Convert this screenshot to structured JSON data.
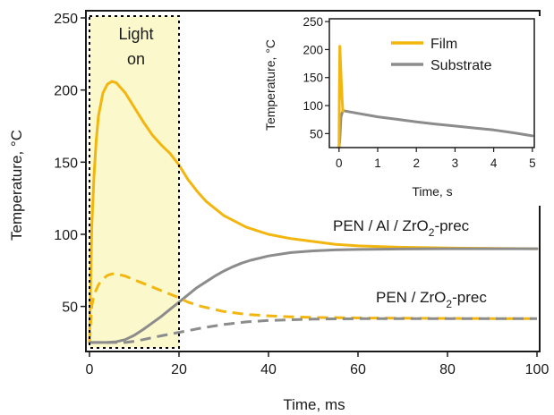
{
  "chart_data": [
    {
      "id": "main",
      "type": "line",
      "title": "",
      "xlabel": "Time, ms",
      "ylabel": "Temperature, °C",
      "xlim": [
        0,
        100
      ],
      "ylim": [
        20,
        250
      ],
      "xticks": [
        "0",
        "20",
        "40",
        "60",
        "80",
        "100"
      ],
      "yticks": [
        "50",
        "100",
        "150",
        "200",
        "250"
      ],
      "grid": false,
      "highlight": {
        "x_range": [
          0,
          20
        ],
        "color": "#fbf8cc",
        "label_line1": "Light",
        "label_line2": "on"
      },
      "annotations": [
        {
          "text": "PEN / Al / ZrO",
          "sub": "2",
          "suffix": "-prec"
        },
        {
          "text": "PEN / ZrO",
          "sub": "2",
          "suffix": "-prec"
        }
      ],
      "series": [
        {
          "color": "#f2b60f",
          "dash": false,
          "x": [
            0,
            0.5,
            1,
            1.5,
            2,
            3,
            4,
            5,
            6,
            8,
            10,
            12,
            14,
            16,
            18,
            20,
            21,
            22,
            24,
            26,
            28,
            30,
            35,
            40,
            45,
            50,
            55,
            60,
            65,
            70,
            80,
            90,
            100
          ],
          "y": [
            25,
            105,
            140,
            165,
            182,
            198,
            204,
            206,
            205,
            198,
            188,
            178,
            169,
            162,
            156,
            148,
            143,
            138,
            130,
            123,
            118,
            113,
            105,
            100,
            97,
            95,
            93,
            92,
            91.5,
            91,
            90.5,
            90.2,
            90
          ]
        },
        {
          "color": "#8c8c8c",
          "dash": false,
          "x": [
            0,
            4,
            6,
            8,
            10,
            12,
            14,
            16,
            18,
            20,
            22,
            24,
            26,
            28,
            30,
            32,
            34,
            36,
            40,
            45,
            50,
            55,
            60,
            70,
            80,
            90,
            100
          ],
          "y": [
            25,
            25,
            25.5,
            27,
            30,
            34,
            38.5,
            43,
            48,
            53,
            58,
            63,
            67,
            71,
            74.5,
            77.5,
            80,
            82,
            85,
            87.3,
            88.5,
            89.2,
            89.5,
            89.8,
            90,
            90,
            90
          ]
        },
        {
          "color": "#f2b60f",
          "dash": true,
          "x": [
            0,
            0.5,
            1,
            2,
            3,
            4,
            5,
            6,
            8,
            10,
            12,
            14,
            16,
            18,
            20,
            22,
            25,
            30,
            35,
            40,
            45,
            50,
            60,
            70,
            80,
            90,
            100
          ],
          "y": [
            25,
            50,
            58,
            65,
            69,
            71.5,
            72.5,
            72.5,
            71,
            68.5,
            66,
            63.5,
            61,
            58.5,
            56,
            53,
            50,
            46.5,
            44.5,
            43.5,
            42.8,
            42.4,
            42,
            41.8,
            41.7,
            41.6,
            41.5
          ]
        },
        {
          "color": "#8c8c8c",
          "dash": true,
          "x": [
            0,
            8,
            10,
            12,
            14,
            16,
            18,
            20,
            22,
            25,
            30,
            35,
            40,
            50,
            60,
            70,
            80,
            90,
            100
          ],
          "y": [
            25,
            25,
            25.8,
            27,
            28.3,
            29.6,
            30.8,
            32,
            33.2,
            35,
            37.5,
            39.3,
            40.3,
            41.2,
            41.5,
            41.6,
            41.6,
            41.6,
            41.6
          ]
        }
      ]
    },
    {
      "id": "inset",
      "type": "line",
      "title": "",
      "xlabel": "Time, s",
      "ylabel": "Temperature, °C",
      "xlim": [
        -0.25,
        5.05
      ],
      "ylim": [
        25,
        255
      ],
      "xticks": [
        "0",
        "1",
        "2",
        "3",
        "4",
        "5"
      ],
      "yticks": [
        "50",
        "100",
        "150",
        "200",
        "250"
      ],
      "grid": false,
      "legend": {
        "placement": "top-right",
        "entries": [
          "Film",
          "Substrate"
        ]
      },
      "series": [
        {
          "name": "Film",
          "color": "#f2b60f",
          "x": [
            0,
            0.01,
            0.02,
            0.04,
            0.06,
            0.08,
            0.1
          ],
          "y": [
            25,
            130,
            206,
            175,
            140,
            110,
            90
          ]
        },
        {
          "name": "Substrate",
          "color": "#8c8c8c",
          "x": [
            0,
            0.02,
            0.05,
            0.1,
            0.5,
            1,
            1.5,
            2,
            2.5,
            3,
            3.5,
            4,
            4.5,
            5
          ],
          "y": [
            25,
            40,
            80,
            91,
            86,
            80,
            75.5,
            71,
            67,
            63.5,
            60,
            56.5,
            51.5,
            46
          ]
        }
      ]
    }
  ]
}
